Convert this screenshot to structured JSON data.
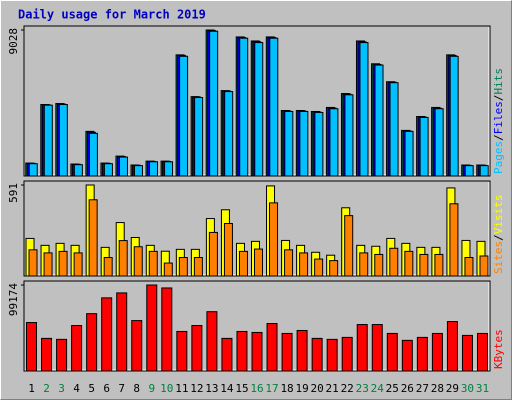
{
  "chart_data": [
    {
      "type": "bar",
      "title": "Daily usage for March 2019",
      "categories": [
        "1",
        "2",
        "3",
        "4",
        "5",
        "6",
        "7",
        "8",
        "9",
        "10",
        "11",
        "12",
        "13",
        "14",
        "15",
        "16",
        "17",
        "18",
        "19",
        "20",
        "21",
        "22",
        "23",
        "24",
        "25",
        "26",
        "27",
        "28",
        "29",
        "30",
        "31"
      ],
      "category_colors": [
        "#000000",
        "#008040",
        "#008040",
        "#000000",
        "#000000",
        "#000000",
        "#000000",
        "#000000",
        "#008040",
        "#008040",
        "#000000",
        "#000000",
        "#000000",
        "#000000",
        "#000000",
        "#008040",
        "#008040",
        "#000000",
        "#000000",
        "#000000",
        "#000000",
        "#000000",
        "#008040",
        "#008040",
        "#000000",
        "#000000",
        "#000000",
        "#000000",
        "#000000",
        "#008040",
        "#008040"
      ],
      "ylim": [
        0,
        9028
      ],
      "yticks": [
        9028
      ],
      "legend_separator": "/",
      "series": [
        {
          "name": "Hits",
          "color": "#00805c",
          "values": [
            800,
            4420,
            4480,
            740,
            2760,
            800,
            1230,
            680,
            920,
            920,
            7490,
            4910,
            9028,
            5280,
            8600,
            8350,
            8600,
            4050,
            4050,
            3990,
            4240,
            5100,
            8350,
            6940,
            5830,
            2820,
            3680,
            4240,
            7490,
            680,
            680
          ]
        },
        {
          "name": "Files",
          "color": "#0000ff",
          "values": [
            780,
            4400,
            4450,
            720,
            2700,
            780,
            1200,
            660,
            900,
            900,
            7450,
            4880,
            8990,
            5250,
            8560,
            8300,
            8560,
            4020,
            4020,
            3960,
            4200,
            5060,
            8300,
            6900,
            5800,
            2790,
            3650,
            4200,
            7450,
            660,
            660
          ]
        },
        {
          "name": "Pages",
          "color": "#00c0ff",
          "values": [
            760,
            4380,
            4420,
            700,
            2640,
            760,
            1170,
            640,
            880,
            880,
            7400,
            4850,
            8950,
            5220,
            8520,
            8250,
            8520,
            3990,
            3990,
            3930,
            4160,
            5020,
            8250,
            6860,
            5770,
            2760,
            3620,
            4160,
            7400,
            640,
            640
          ]
        }
      ]
    },
    {
      "type": "bar",
      "ylim": [
        0,
        591
      ],
      "yticks": [
        591
      ],
      "legend_separator": "/",
      "series": [
        {
          "name": "Visits",
          "color": "#ffff00",
          "values": [
            244,
            199,
            212,
            199,
            591,
            186,
            347,
            250,
            199,
            161,
            173,
            173,
            373,
            430,
            212,
            225,
            585,
            231,
            199,
            154,
            135,
            443,
            199,
            193,
            244,
            212,
            186,
            186,
            572,
            231,
            225
          ]
        },
        {
          "name": "Sites",
          "color": "#ff8000",
          "values": [
            170,
            150,
            160,
            150,
            495,
            120,
            230,
            190,
            160,
            84,
            120,
            120,
            283,
            341,
            160,
            175,
            475,
            170,
            150,
            110,
            100,
            392,
            150,
            140,
            180,
            160,
            140,
            140,
            469,
            120,
            130
          ]
        }
      ]
    },
    {
      "type": "bar",
      "ylim": [
        0,
        99174
      ],
      "yticks": [
        99174
      ],
      "series": [
        {
          "name": "KBytes",
          "color": "#ff0000",
          "values": [
            55860,
            37620,
            36480,
            52440,
            66120,
            84360,
            90060,
            58140,
            99174,
            95760,
            45600,
            52440,
            68400,
            37620,
            45600,
            44460,
            54720,
            43320,
            46740,
            37620,
            36480,
            38760,
            53580,
            53580,
            43320,
            35340,
            38760,
            43320,
            57000,
            41040,
            43320
          ]
        }
      ]
    }
  ]
}
